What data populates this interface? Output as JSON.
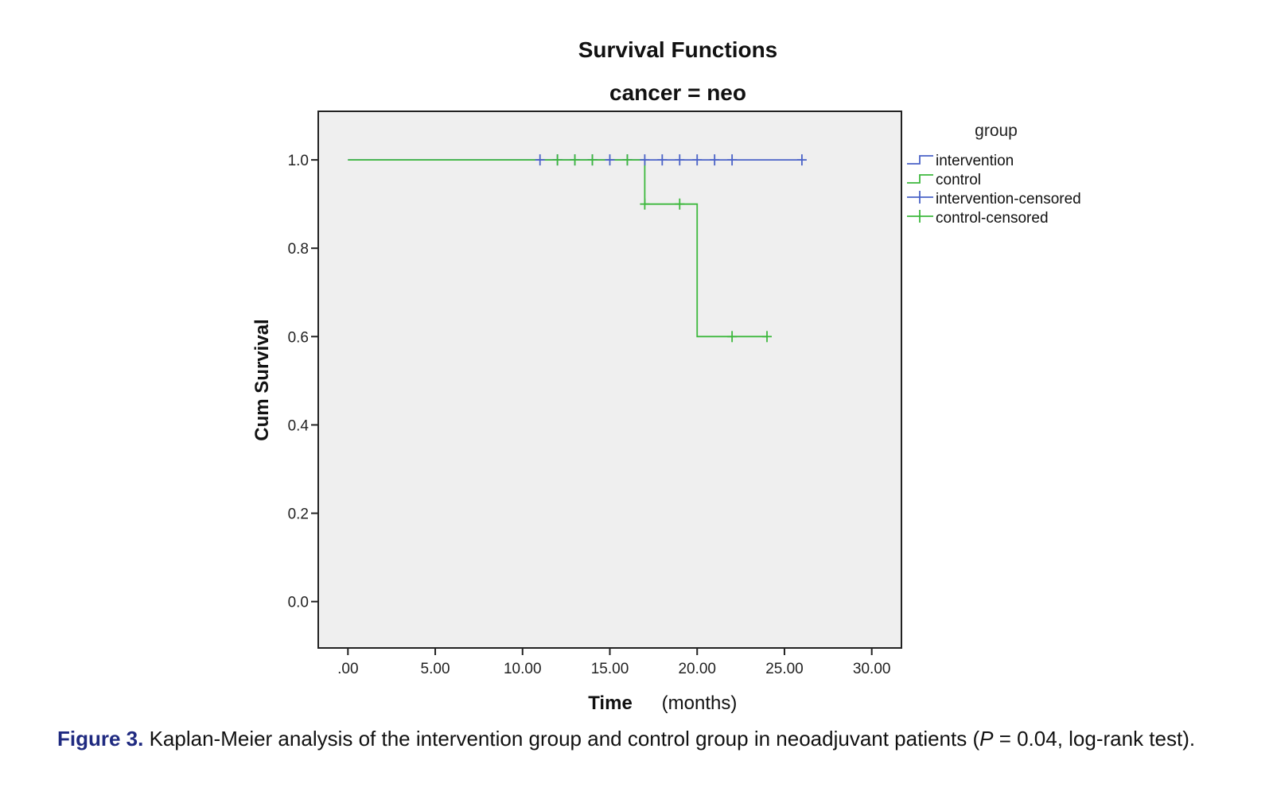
{
  "chart_data": {
    "type": "line",
    "title": "Survival Functions",
    "subtitle": "cancer = neo",
    "xlabel": "Time",
    "xunit": "(months)",
    "ylabel": "Cum Survival",
    "xlim": [
      -1.7,
      31.7
    ],
    "ylim": [
      -0.105,
      1.11
    ],
    "xticks": [
      ".00",
      "5.00",
      "10.00",
      "15.00",
      "20.00",
      "25.00",
      "30.00"
    ],
    "xtick_values": [
      0,
      5,
      10,
      15,
      20,
      25,
      30
    ],
    "yticks": [
      "0.0",
      "0.2",
      "0.4",
      "0.6",
      "0.8",
      "1.0"
    ],
    "ytick_values": [
      0,
      0.2,
      0.4,
      0.6,
      0.8,
      1.0
    ],
    "grid": false,
    "plot_background": "#efefef",
    "legend": {
      "title": "group",
      "placement": "right",
      "entries": [
        "intervention",
        "control",
        "intervention-censored",
        "control-censored"
      ]
    },
    "series": [
      {
        "name": "intervention",
        "color": "#4a62c7",
        "step_x": [
          0,
          26
        ],
        "step_y": [
          1.0,
          1.0
        ],
        "censored": [
          [
            11,
            1.0
          ],
          [
            12,
            1.0
          ],
          [
            13,
            1.0
          ],
          [
            14,
            1.0
          ],
          [
            15,
            1.0
          ],
          [
            16,
            1.0
          ],
          [
            17,
            1.0
          ],
          [
            18,
            1.0
          ],
          [
            19,
            1.0
          ],
          [
            20,
            1.0
          ],
          [
            21,
            1.0
          ],
          [
            22,
            1.0
          ],
          [
            26,
            1.0
          ]
        ]
      },
      {
        "name": "control",
        "color": "#3db83d",
        "step_x": [
          0,
          17,
          20,
          24
        ],
        "step_y": [
          1.0,
          0.9,
          0.6,
          0.6
        ],
        "censored": [
          [
            12,
            1.0
          ],
          [
            13,
            1.0
          ],
          [
            14,
            1.0
          ],
          [
            16,
            1.0
          ],
          [
            17,
            0.9
          ],
          [
            19,
            0.9
          ],
          [
            22,
            0.6
          ],
          [
            24,
            0.6
          ]
        ]
      }
    ]
  },
  "caption": {
    "label": "Figure 3.",
    "text_before_p": " Kaplan-Meier analysis of the intervention group and control group in neoadjuvant patients (",
    "p_symbol": "P",
    "text_after_p": " = 0.04, log-rank test)."
  }
}
